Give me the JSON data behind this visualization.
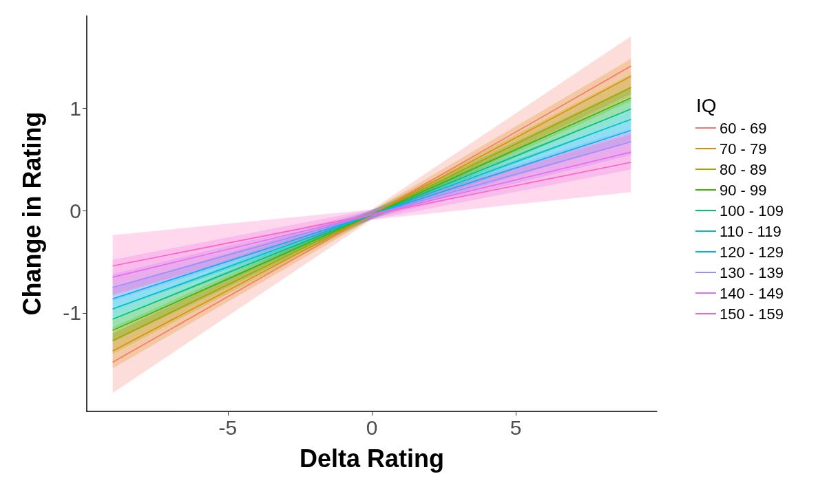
{
  "chart_data": {
    "type": "line",
    "xlabel": "Delta Rating",
    "ylabel": "Change in Rating",
    "legend_title": "IQ",
    "legend": "right",
    "grid": false,
    "marker": "none",
    "line_style": "solid",
    "xlim": [
      -9.9,
      9.9
    ],
    "xticks": [
      -5,
      0,
      5
    ],
    "ylim": [
      -1.96,
      1.9
    ],
    "yticks": [
      -1,
      0,
      1
    ],
    "x": [
      -9,
      0,
      9
    ],
    "series": [
      {
        "name": "60 - 69",
        "color": "#f8766d",
        "values": [
          -1.48,
          -0.04,
          1.41
        ],
        "lower": [
          -1.78,
          -0.09,
          1.12
        ],
        "upper": [
          -1.19,
          0.01,
          1.7
        ]
      },
      {
        "name": "70 - 79",
        "color": "#d89000",
        "values": [
          -1.37,
          -0.04,
          1.31
        ],
        "lower": [
          -1.54,
          -0.08,
          1.14
        ],
        "upper": [
          -1.2,
          0.0,
          1.48
        ]
      },
      {
        "name": "80 - 89",
        "color": "#a3a500",
        "values": [
          -1.27,
          -0.04,
          1.2
        ],
        "lower": [
          -1.4,
          -0.08,
          1.07
        ],
        "upper": [
          -1.14,
          0.0,
          1.33
        ]
      },
      {
        "name": "90 - 99",
        "color": "#39b600",
        "values": [
          -1.17,
          -0.04,
          1.1
        ],
        "lower": [
          -1.28,
          -0.08,
          0.99
        ],
        "upper": [
          -1.06,
          0.0,
          1.21
        ]
      },
      {
        "name": "100 - 109",
        "color": "#00bf7d",
        "values": [
          -1.06,
          -0.04,
          0.99
        ],
        "lower": [
          -1.16,
          -0.08,
          0.89
        ],
        "upper": [
          -0.96,
          0.0,
          1.09
        ]
      },
      {
        "name": "110 - 119",
        "color": "#00bfc4",
        "values": [
          -0.96,
          -0.04,
          0.89
        ],
        "lower": [
          -1.06,
          -0.08,
          0.79
        ],
        "upper": [
          -0.86,
          0.0,
          0.99
        ]
      },
      {
        "name": "120 - 129",
        "color": "#00b0f6",
        "values": [
          -0.86,
          -0.04,
          0.78
        ],
        "lower": [
          -0.97,
          -0.08,
          0.67
        ],
        "upper": [
          -0.75,
          0.0,
          0.89
        ]
      },
      {
        "name": "130 - 139",
        "color": "#9590ff",
        "values": [
          -0.75,
          -0.04,
          0.67
        ],
        "lower": [
          -0.88,
          -0.08,
          0.54
        ],
        "upper": [
          -0.62,
          0.0,
          0.8
        ]
      },
      {
        "name": "140 - 149",
        "color": "#e76bf3",
        "values": [
          -0.65,
          -0.04,
          0.57
        ],
        "lower": [
          -0.82,
          -0.09,
          0.4
        ],
        "upper": [
          -0.48,
          0.01,
          0.74
        ]
      },
      {
        "name": "150 - 159",
        "color": "#ff62bc",
        "values": [
          -0.54,
          -0.04,
          0.47
        ],
        "lower": [
          -0.83,
          -0.09,
          0.18
        ],
        "upper": [
          -0.24,
          0.01,
          0.76
        ]
      }
    ]
  }
}
